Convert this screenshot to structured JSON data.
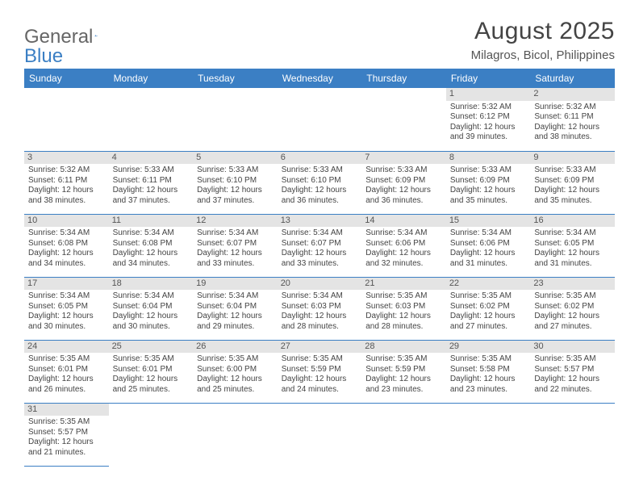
{
  "logo": {
    "text1": "General",
    "text2": "Blue",
    "icon_color": "#3b7fc4"
  },
  "title": "August 2025",
  "location": "Milagros, Bicol, Philippines",
  "colors": {
    "header_bg": "#3b7fc4",
    "header_fg": "#ffffff",
    "daynum_bg": "#e4e4e4",
    "border": "#3b7fc4",
    "text": "#444444"
  },
  "weekdays": [
    "Sunday",
    "Monday",
    "Tuesday",
    "Wednesday",
    "Thursday",
    "Friday",
    "Saturday"
  ],
  "leading_blanks": 5,
  "days": [
    {
      "n": "1",
      "sr": "5:32 AM",
      "ss": "6:12 PM",
      "dl": "12 hours and 39 minutes."
    },
    {
      "n": "2",
      "sr": "5:32 AM",
      "ss": "6:11 PM",
      "dl": "12 hours and 38 minutes."
    },
    {
      "n": "3",
      "sr": "5:32 AM",
      "ss": "6:11 PM",
      "dl": "12 hours and 38 minutes."
    },
    {
      "n": "4",
      "sr": "5:33 AM",
      "ss": "6:11 PM",
      "dl": "12 hours and 37 minutes."
    },
    {
      "n": "5",
      "sr": "5:33 AM",
      "ss": "6:10 PM",
      "dl": "12 hours and 37 minutes."
    },
    {
      "n": "6",
      "sr": "5:33 AM",
      "ss": "6:10 PM",
      "dl": "12 hours and 36 minutes."
    },
    {
      "n": "7",
      "sr": "5:33 AM",
      "ss": "6:09 PM",
      "dl": "12 hours and 36 minutes."
    },
    {
      "n": "8",
      "sr": "5:33 AM",
      "ss": "6:09 PM",
      "dl": "12 hours and 35 minutes."
    },
    {
      "n": "9",
      "sr": "5:33 AM",
      "ss": "6:09 PM",
      "dl": "12 hours and 35 minutes."
    },
    {
      "n": "10",
      "sr": "5:34 AM",
      "ss": "6:08 PM",
      "dl": "12 hours and 34 minutes."
    },
    {
      "n": "11",
      "sr": "5:34 AM",
      "ss": "6:08 PM",
      "dl": "12 hours and 34 minutes."
    },
    {
      "n": "12",
      "sr": "5:34 AM",
      "ss": "6:07 PM",
      "dl": "12 hours and 33 minutes."
    },
    {
      "n": "13",
      "sr": "5:34 AM",
      "ss": "6:07 PM",
      "dl": "12 hours and 33 minutes."
    },
    {
      "n": "14",
      "sr": "5:34 AM",
      "ss": "6:06 PM",
      "dl": "12 hours and 32 minutes."
    },
    {
      "n": "15",
      "sr": "5:34 AM",
      "ss": "6:06 PM",
      "dl": "12 hours and 31 minutes."
    },
    {
      "n": "16",
      "sr": "5:34 AM",
      "ss": "6:05 PM",
      "dl": "12 hours and 31 minutes."
    },
    {
      "n": "17",
      "sr": "5:34 AM",
      "ss": "6:05 PM",
      "dl": "12 hours and 30 minutes."
    },
    {
      "n": "18",
      "sr": "5:34 AM",
      "ss": "6:04 PM",
      "dl": "12 hours and 30 minutes."
    },
    {
      "n": "19",
      "sr": "5:34 AM",
      "ss": "6:04 PM",
      "dl": "12 hours and 29 minutes."
    },
    {
      "n": "20",
      "sr": "5:34 AM",
      "ss": "6:03 PM",
      "dl": "12 hours and 28 minutes."
    },
    {
      "n": "21",
      "sr": "5:35 AM",
      "ss": "6:03 PM",
      "dl": "12 hours and 28 minutes."
    },
    {
      "n": "22",
      "sr": "5:35 AM",
      "ss": "6:02 PM",
      "dl": "12 hours and 27 minutes."
    },
    {
      "n": "23",
      "sr": "5:35 AM",
      "ss": "6:02 PM",
      "dl": "12 hours and 27 minutes."
    },
    {
      "n": "24",
      "sr": "5:35 AM",
      "ss": "6:01 PM",
      "dl": "12 hours and 26 minutes."
    },
    {
      "n": "25",
      "sr": "5:35 AM",
      "ss": "6:01 PM",
      "dl": "12 hours and 25 minutes."
    },
    {
      "n": "26",
      "sr": "5:35 AM",
      "ss": "6:00 PM",
      "dl": "12 hours and 25 minutes."
    },
    {
      "n": "27",
      "sr": "5:35 AM",
      "ss": "5:59 PM",
      "dl": "12 hours and 24 minutes."
    },
    {
      "n": "28",
      "sr": "5:35 AM",
      "ss": "5:59 PM",
      "dl": "12 hours and 23 minutes."
    },
    {
      "n": "29",
      "sr": "5:35 AM",
      "ss": "5:58 PM",
      "dl": "12 hours and 23 minutes."
    },
    {
      "n": "30",
      "sr": "5:35 AM",
      "ss": "5:57 PM",
      "dl": "12 hours and 22 minutes."
    },
    {
      "n": "31",
      "sr": "5:35 AM",
      "ss": "5:57 PM",
      "dl": "12 hours and 21 minutes."
    }
  ],
  "labels": {
    "sunrise": "Sunrise:",
    "sunset": "Sunset:",
    "daylight": "Daylight:"
  }
}
